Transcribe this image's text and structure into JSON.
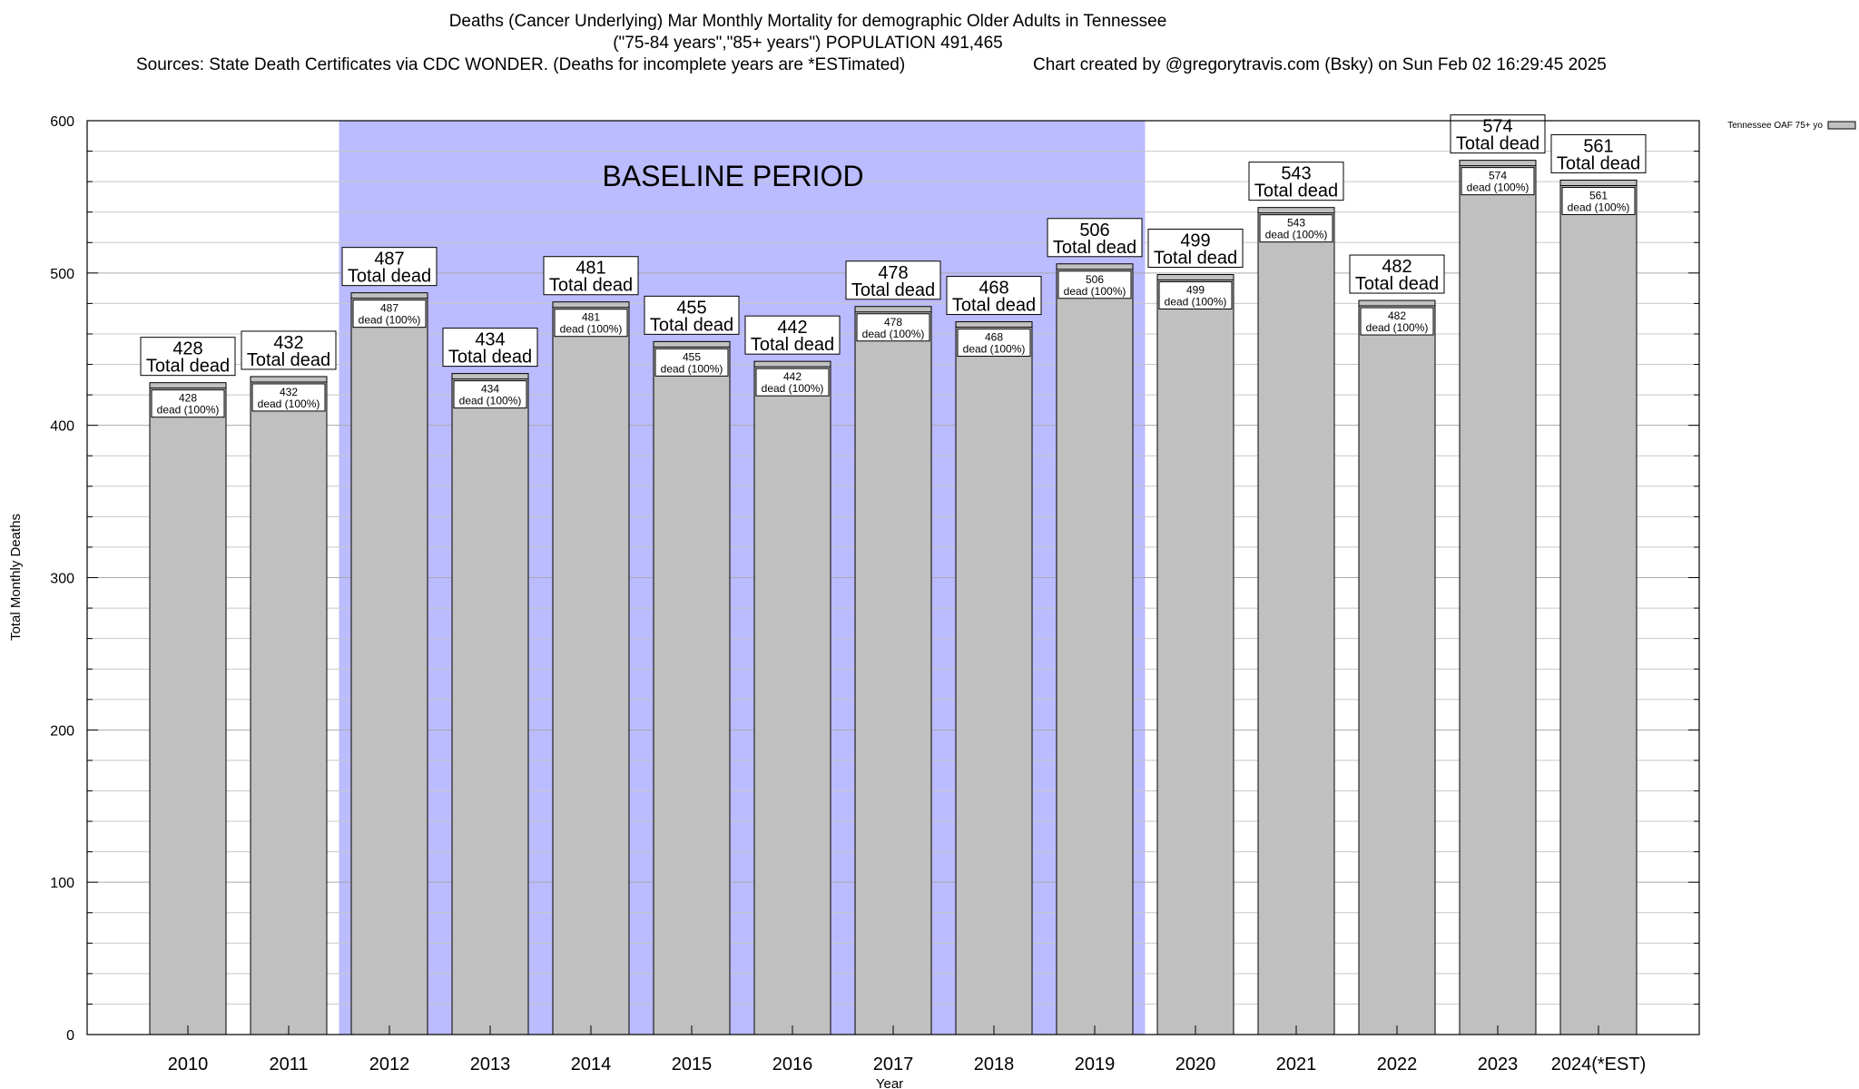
{
  "chart_data": {
    "type": "bar",
    "title_line1": "Deaths (Cancer Underlying) Mar Monthly Mortality for demographic Older Adults in Tennessee",
    "title_line2": "(\"75-84 years\",\"85+ years\") POPULATION 491,465",
    "sources": "Sources: State Death Certificates via CDC WONDER. (Deaths for incomplete years are *ESTimated)",
    "credit": "Chart created by @gregorytravis.com (Bsky) on Sun Feb 02 16:29:45 2025",
    "xlabel": "Year",
    "ylabel": "Total Monthly Deaths",
    "ylim": [
      0,
      600
    ],
    "yticks": [
      0,
      100,
      200,
      300,
      400,
      500,
      600
    ],
    "grid": true,
    "categories": [
      "2010",
      "2011",
      "2012",
      "2013",
      "2014",
      "2015",
      "2016",
      "2017",
      "2018",
      "2019",
      "2020",
      "2021",
      "2022",
      "2023",
      "2024(*EST)"
    ],
    "series": [
      {
        "name": "Tennessee OAF 75+ yo",
        "values": [
          428,
          432,
          487,
          434,
          481,
          455,
          442,
          478,
          468,
          506,
          499,
          543,
          482,
          574,
          561
        ]
      }
    ],
    "total_label_suffix": "Total dead",
    "inner_label_suffix": "dead (100%)",
    "baseline": {
      "label": "BASELINE PERIOD",
      "start": "2012",
      "end": "2019"
    },
    "legend_position": "top-right",
    "colors": {
      "bar": "#c0c0c0",
      "baseline": "#bbbbff",
      "grid": "#c8c8c8"
    }
  }
}
